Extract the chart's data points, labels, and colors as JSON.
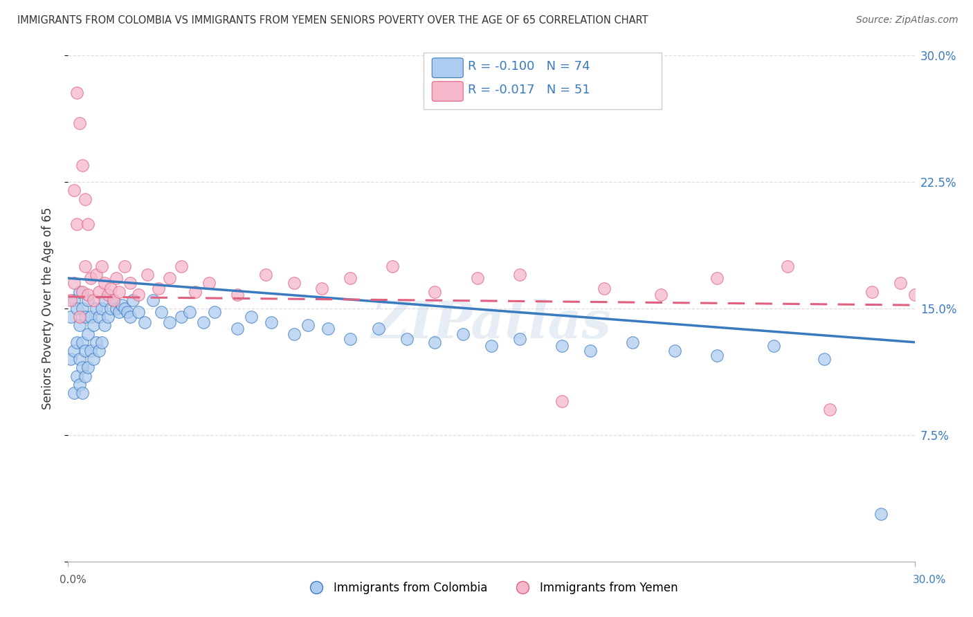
{
  "title": "IMMIGRANTS FROM COLOMBIA VS IMMIGRANTS FROM YEMEN SENIORS POVERTY OVER THE AGE OF 65 CORRELATION CHART",
  "source": "Source: ZipAtlas.com",
  "ylabel": "Seniors Poverty Over the Age of 65",
  "legend_label1": "Immigrants from Colombia",
  "legend_label2": "Immigrants from Yemen",
  "R1": "-0.100",
  "N1": "74",
  "R2": "-0.017",
  "N2": "51",
  "color1": "#aeccf0",
  "color2": "#f5b8cb",
  "line_color1": "#3a7abf",
  "line_color2": "#e06080",
  "xmin": 0.0,
  "xmax": 0.3,
  "ymin": 0.0,
  "ymax": 0.3,
  "ytick_vals": [
    0.0,
    0.075,
    0.15,
    0.225,
    0.3
  ],
  "ytick_labels_right": [
    "",
    "7.5%",
    "15.0%",
    "22.5%",
    "30.0%"
  ],
  "colombia_x": [
    0.001,
    0.001,
    0.002,
    0.002,
    0.002,
    0.003,
    0.003,
    0.003,
    0.004,
    0.004,
    0.004,
    0.004,
    0.005,
    0.005,
    0.005,
    0.005,
    0.006,
    0.006,
    0.006,
    0.007,
    0.007,
    0.007,
    0.008,
    0.008,
    0.009,
    0.009,
    0.01,
    0.01,
    0.011,
    0.011,
    0.012,
    0.012,
    0.013,
    0.013,
    0.014,
    0.015,
    0.016,
    0.017,
    0.018,
    0.019,
    0.02,
    0.021,
    0.022,
    0.023,
    0.025,
    0.027,
    0.03,
    0.033,
    0.036,
    0.04,
    0.043,
    0.048,
    0.052,
    0.06,
    0.065,
    0.072,
    0.08,
    0.085,
    0.092,
    0.1,
    0.11,
    0.12,
    0.13,
    0.14,
    0.15,
    0.16,
    0.175,
    0.185,
    0.2,
    0.215,
    0.23,
    0.25,
    0.268,
    0.288
  ],
  "colombia_y": [
    0.12,
    0.145,
    0.1,
    0.125,
    0.155,
    0.11,
    0.13,
    0.15,
    0.105,
    0.12,
    0.14,
    0.16,
    0.1,
    0.115,
    0.13,
    0.15,
    0.11,
    0.125,
    0.145,
    0.115,
    0.135,
    0.155,
    0.125,
    0.145,
    0.12,
    0.14,
    0.13,
    0.15,
    0.125,
    0.145,
    0.13,
    0.15,
    0.14,
    0.155,
    0.145,
    0.15,
    0.155,
    0.15,
    0.148,
    0.152,
    0.15,
    0.148,
    0.145,
    0.155,
    0.148,
    0.142,
    0.155,
    0.148,
    0.142,
    0.145,
    0.148,
    0.142,
    0.148,
    0.138,
    0.145,
    0.142,
    0.135,
    0.14,
    0.138,
    0.132,
    0.138,
    0.132,
    0.13,
    0.135,
    0.128,
    0.132,
    0.128,
    0.125,
    0.13,
    0.125,
    0.122,
    0.128,
    0.12,
    0.028
  ],
  "yemen_x": [
    0.001,
    0.002,
    0.002,
    0.003,
    0.003,
    0.004,
    0.004,
    0.005,
    0.005,
    0.006,
    0.006,
    0.007,
    0.007,
    0.008,
    0.009,
    0.01,
    0.011,
    0.012,
    0.013,
    0.014,
    0.015,
    0.016,
    0.017,
    0.018,
    0.02,
    0.022,
    0.025,
    0.028,
    0.032,
    0.036,
    0.04,
    0.045,
    0.05,
    0.06,
    0.07,
    0.08,
    0.09,
    0.1,
    0.115,
    0.13,
    0.145,
    0.16,
    0.175,
    0.19,
    0.21,
    0.23,
    0.255,
    0.27,
    0.285,
    0.295,
    0.3
  ],
  "yemen_y": [
    0.155,
    0.165,
    0.22,
    0.2,
    0.278,
    0.145,
    0.26,
    0.16,
    0.235,
    0.175,
    0.215,
    0.158,
    0.2,
    0.168,
    0.155,
    0.17,
    0.16,
    0.175,
    0.165,
    0.158,
    0.162,
    0.155,
    0.168,
    0.16,
    0.175,
    0.165,
    0.158,
    0.17,
    0.162,
    0.168,
    0.175,
    0.16,
    0.165,
    0.158,
    0.17,
    0.165,
    0.162,
    0.168,
    0.175,
    0.16,
    0.168,
    0.17,
    0.095,
    0.162,
    0.158,
    0.168,
    0.175,
    0.09,
    0.16,
    0.165,
    0.158
  ],
  "background_color": "#ffffff",
  "grid_color": "#dddddd",
  "watermark": "ZIPatlas"
}
